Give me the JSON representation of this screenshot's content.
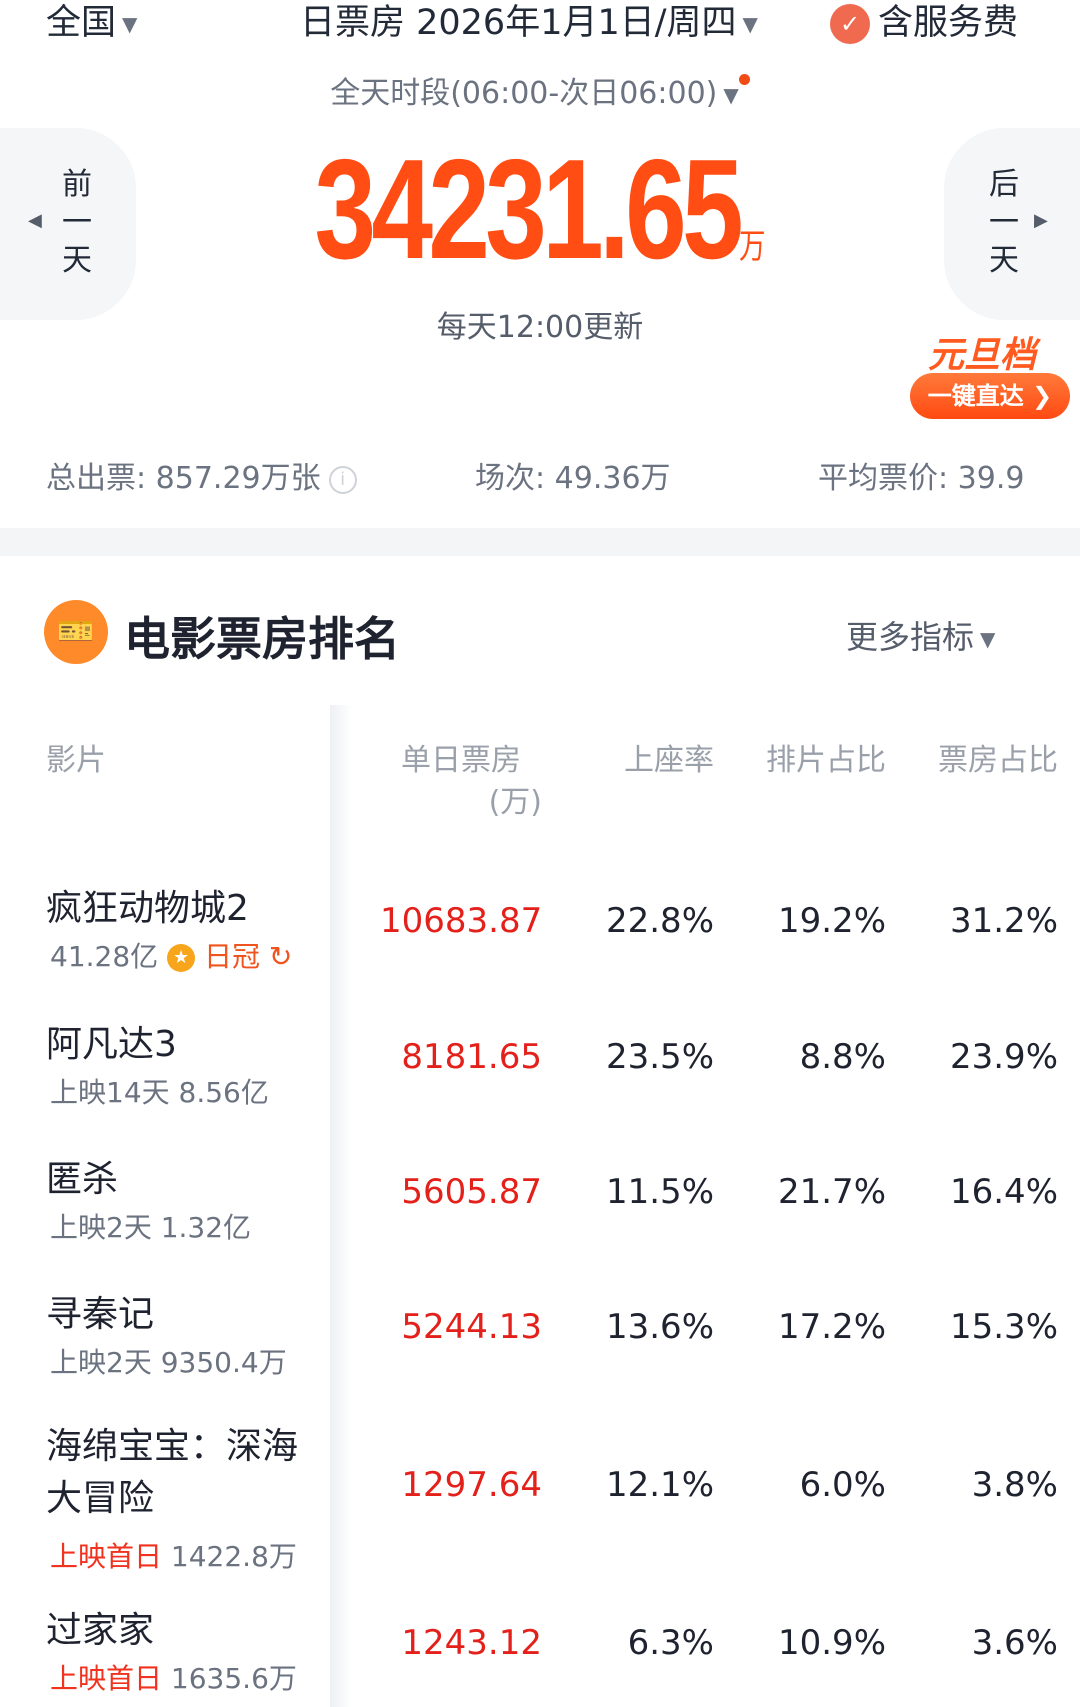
{
  "header": {
    "region": "全国",
    "date_label": "日票房 2026年1月1日/周四",
    "service_fee": "含服务费",
    "period": "全天时段(06:00-次日06:00)"
  },
  "nav": {
    "prev": [
      "前",
      "一",
      "天"
    ],
    "next": [
      "后",
      "一",
      "天"
    ]
  },
  "total": {
    "value": "34231.65",
    "unit": "万",
    "update_note": "每天12:00更新"
  },
  "promo": {
    "title": "元旦档",
    "button": "一键直达"
  },
  "stats": {
    "tickets": "总出票: 857.29万张",
    "shows": "场次: 49.36万",
    "avg_price": "平均票价: 39.9"
  },
  "ranking": {
    "title": "电影票房排名",
    "more": "更多指标",
    "headers": {
      "film": "影片",
      "daily": "单日票房",
      "daily_unit": "(万)",
      "seat": "上座率",
      "schedule": "排片占比",
      "share": "票房占比"
    },
    "rows": [
      {
        "name": "疯狂动物城2",
        "sub": "41.28亿",
        "badge": "日冠",
        "daily": "10683.87",
        "seat": "22.8%",
        "schedule": "19.2%",
        "share": "31.2%"
      },
      {
        "name": "阿凡达3",
        "sub": "上映14天 8.56亿",
        "daily": "8181.65",
        "seat": "23.5%",
        "schedule": "8.8%",
        "share": "23.9%"
      },
      {
        "name": "匿杀",
        "sub": "上映2天 1.32亿",
        "daily": "5605.87",
        "seat": "11.5%",
        "schedule": "21.7%",
        "share": "16.4%"
      },
      {
        "name": "寻秦记",
        "sub": "上映2天 9350.4万",
        "daily": "5244.13",
        "seat": "13.6%",
        "schedule": "17.2%",
        "share": "15.3%"
      },
      {
        "name": "海绵宝宝：深海",
        "name2": "大冒险",
        "sub_red": "上映首日",
        "sub": "1422.8万",
        "daily": "1297.64",
        "seat": "12.1%",
        "schedule": "6.0%",
        "share": "3.8%"
      },
      {
        "name": "过家家",
        "sub_red": "上映首日",
        "sub": "1635.6万",
        "daily": "1243.12",
        "seat": "6.3%",
        "schedule": "10.9%",
        "share": "3.6%"
      }
    ]
  },
  "colors": {
    "accent": "#ff4d14",
    "box_office": "#e3211a"
  }
}
